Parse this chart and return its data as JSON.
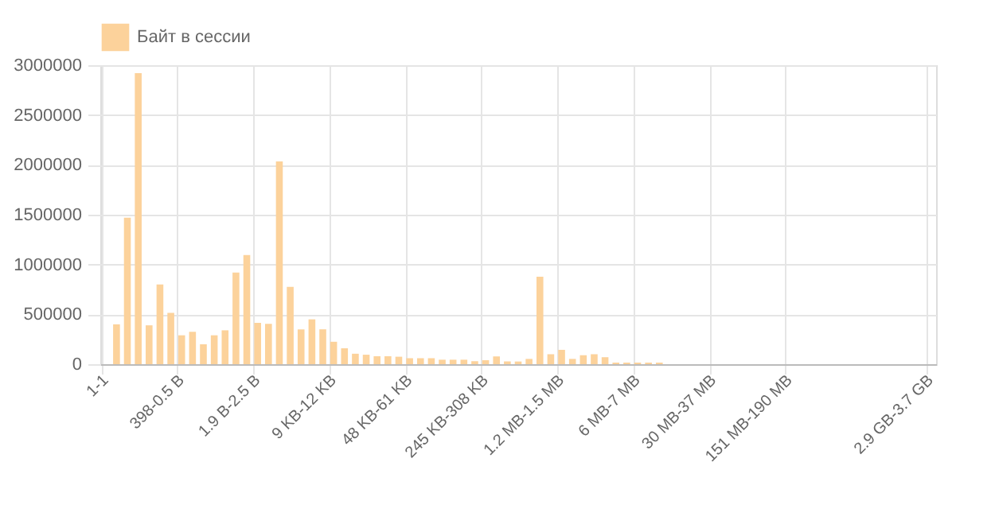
{
  "chart_data": {
    "type": "bar",
    "categories": [
      "1-1",
      null,
      null,
      null,
      null,
      null,
      null,
      "398-0.5 B",
      null,
      null,
      null,
      null,
      null,
      null,
      "1.9 B-2.5 B",
      null,
      null,
      null,
      null,
      null,
      null,
      "9 KB-12 KB",
      null,
      null,
      null,
      null,
      null,
      null,
      "48 KB-61 KB",
      null,
      null,
      null,
      null,
      null,
      null,
      "245 KB-308 KB",
      null,
      null,
      null,
      null,
      null,
      null,
      "1.2 MB-1.5 MB",
      null,
      null,
      null,
      null,
      null,
      null,
      "6 MB-7 MB",
      null,
      null,
      null,
      null,
      null,
      null,
      "30 MB-37 MB",
      null,
      null,
      null,
      null,
      null,
      null,
      "151 MB-190 MB",
      null,
      null,
      null,
      null,
      null,
      null,
      null,
      null,
      null,
      null,
      null,
      null,
      "2.9 GB-3.7 GB"
    ],
    "series": [
      {
        "name": "Байт в сессии",
        "color": "#fcd29b",
        "values": [
          0,
          400000,
          1470000,
          2920000,
          390000,
          800000,
          515000,
          290000,
          325000,
          200000,
          290000,
          340000,
          920000,
          1095000,
          415000,
          405000,
          2035000,
          775000,
          350000,
          450000,
          350000,
          225000,
          160000,
          105000,
          95000,
          80000,
          80000,
          75000,
          60000,
          60000,
          60000,
          45000,
          45000,
          45000,
          30000,
          40000,
          78000,
          27000,
          27000,
          53000,
          878000,
          100000,
          144000,
          53000,
          90000,
          100000,
          70000,
          16000,
          16000,
          16000,
          16000,
          16000,
          0,
          0,
          0,
          0,
          0,
          0,
          0,
          0,
          0,
          0,
          0,
          0,
          0,
          0,
          0,
          0,
          0,
          0,
          0,
          0,
          0,
          0,
          0,
          0,
          0
        ]
      }
    ],
    "ylim": [
      0,
      3000000
    ],
    "yticks": [
      0,
      500000,
      1000000,
      1500000,
      2000000,
      2500000,
      3000000
    ],
    "grid": true,
    "legend": "top"
  }
}
